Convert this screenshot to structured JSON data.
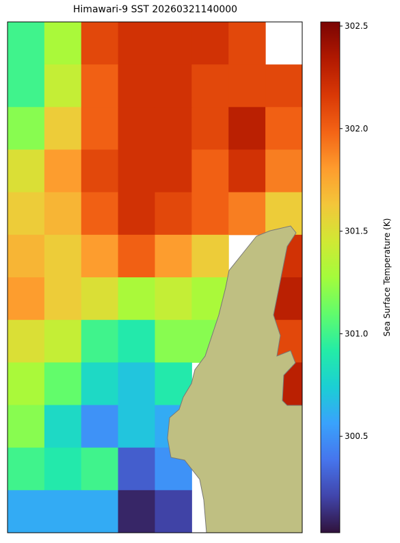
{
  "chart_data": {
    "type": "heatmap",
    "title": "Himawari-9 SST 20260321140000",
    "colorbar_label": "Sea Surface Temperature (K)",
    "ylim": [
      300.03,
      302.52
    ],
    "yticks": [
      {
        "value": 300.5,
        "label": "300.5"
      },
      {
        "value": 301,
        "label": "301.0"
      },
      {
        "value": 301.5,
        "label": "301.5"
      },
      {
        "value": 302,
        "label": "302.0"
      },
      {
        "value": 302.5,
        "label": "302.5"
      }
    ],
    "colormap": [
      "#30123b",
      "#4145ab",
      "#4675ed",
      "#39a2fc",
      "#1bcfd4",
      "#24eca6",
      "#61fc6c",
      "#a4fc3b",
      "#d1e834",
      "#f3c63a",
      "#fe9b2d",
      "#f36315",
      "#d93806",
      "#b11901",
      "#7a0403"
    ],
    "land_color": "#bfbf82",
    "grid_values": [
      [
        301.0,
        301.3,
        302.1,
        302.2,
        302.2,
        302.2,
        302.1,
        null
      ],
      [
        301.0,
        301.4,
        302.0,
        302.2,
        302.2,
        302.1,
        302.1,
        302.1
      ],
      [
        301.2,
        301.6,
        302.0,
        302.2,
        302.2,
        302.1,
        302.3,
        302.0
      ],
      [
        301.5,
        301.8,
        302.1,
        302.2,
        302.2,
        302.0,
        302.2,
        301.9
      ],
      [
        301.6,
        301.7,
        302.0,
        302.2,
        302.1,
        302.0,
        301.9,
        301.6
      ],
      [
        301.7,
        301.6,
        301.8,
        302.0,
        301.8,
        301.6,
        null,
        302.2
      ],
      [
        301.8,
        301.6,
        301.5,
        301.3,
        301.4,
        301.3,
        null,
        302.3
      ],
      [
        301.5,
        301.4,
        301.0,
        300.9,
        301.2,
        301.2,
        null,
        302.1
      ],
      [
        301.3,
        301.1,
        300.8,
        300.7,
        300.9,
        null,
        null,
        302.3
      ],
      [
        301.2,
        300.8,
        300.5,
        300.7,
        300.6,
        null,
        null,
        null
      ],
      [
        301.0,
        300.9,
        301.0,
        300.3,
        300.5,
        null,
        null,
        null
      ],
      [
        300.6,
        300.6,
        300.6,
        300.1,
        300.2,
        null,
        null,
        null
      ]
    ]
  }
}
